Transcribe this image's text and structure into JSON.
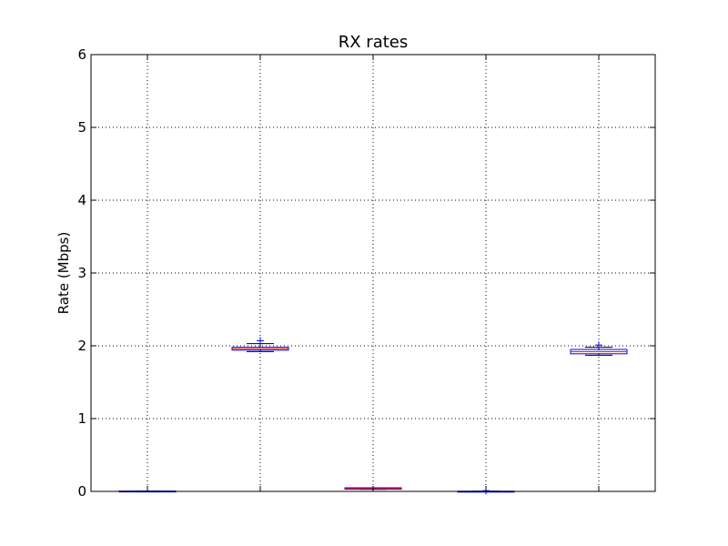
{
  "chart_data": {
    "type": "box",
    "title": "RX rates",
    "xlabel": "",
    "ylabel": "Rate (Mbps)",
    "ylim": [
      0,
      6
    ],
    "yticks": [
      "0",
      "1",
      "2",
      "3",
      "4",
      "5",
      "6"
    ],
    "grid": true,
    "legend": "none",
    "colors": {
      "box": "#0000ff",
      "median": "#ff0000",
      "whisker": "#000000",
      "flier": "#0000ff",
      "grid": "#000000"
    },
    "boxes": [
      {
        "q1": 0.0,
        "median": 0.0,
        "q3": 0.005,
        "whisker_low": 0.0,
        "whisker_high": 0.005,
        "fliers": []
      },
      {
        "q1": 1.94,
        "median": 1.96,
        "q3": 1.98,
        "whisker_low": 1.92,
        "whisker_high": 2.03,
        "fliers": [
          2.07
        ]
      },
      {
        "q1": 0.03,
        "median": 0.04,
        "q3": 0.05,
        "whisker_low": 0.03,
        "whisker_high": 0.05,
        "fliers": []
      },
      {
        "q1": 0.0,
        "median": 0.0,
        "q3": 0.003,
        "whisker_low": 0.0,
        "whisker_high": 0.003,
        "fliers": [
          0.01
        ]
      },
      {
        "q1": 1.89,
        "median": 1.92,
        "q3": 1.95,
        "whisker_low": 1.87,
        "whisker_high": 1.98,
        "fliers": [
          2.01
        ]
      }
    ]
  }
}
